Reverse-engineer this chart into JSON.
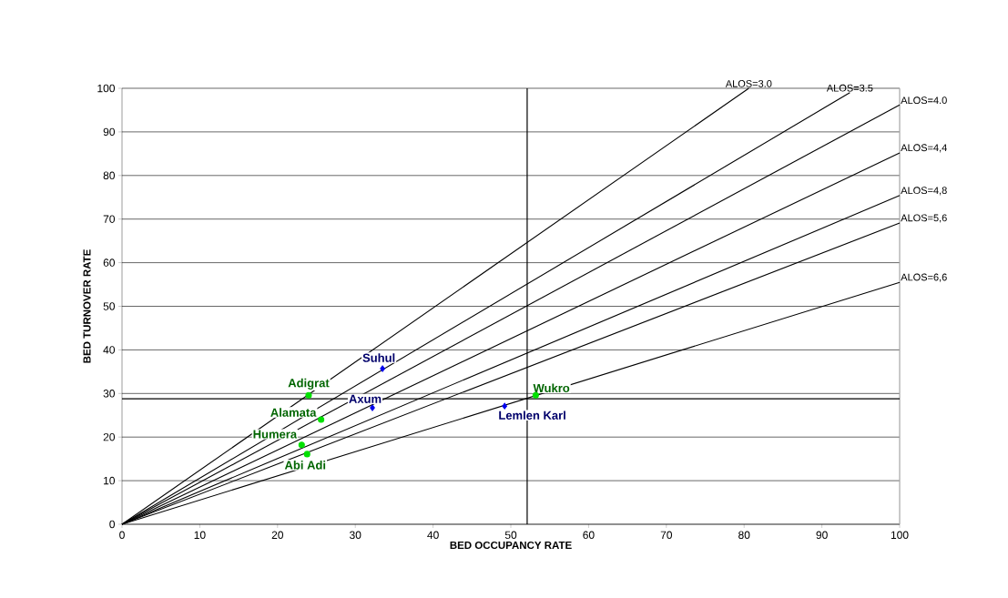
{
  "chart_data": {
    "type": "scatter",
    "xlabel": "BED OCCUPANCY RATE",
    "ylabel": "BED TURNOVER RATE",
    "xlim": [
      0,
      100
    ],
    "ylim": [
      0,
      100
    ],
    "xticks": [
      0,
      10,
      20,
      30,
      40,
      50,
      60,
      70,
      80,
      90,
      100
    ],
    "yticks": [
      0,
      10,
      20,
      30,
      40,
      50,
      60,
      70,
      80,
      90,
      100
    ],
    "grid": "y",
    "ref_lines": [
      {
        "axis": "x",
        "value": 52.1,
        "color": "#000000"
      },
      {
        "axis": "y",
        "value": 28.8,
        "color": "#000000"
      }
    ],
    "series": [
      {
        "type": "line",
        "name": "ALOS=3.0",
        "color": "#000000",
        "marker": "none",
        "x": [
          0,
          80.6
        ],
        "values": [
          0,
          100
        ]
      },
      {
        "type": "line",
        "name": "ALOS=3.5",
        "color": "#000000",
        "marker": "none",
        "x": [
          0,
          93.6
        ],
        "values": [
          0,
          99
        ]
      },
      {
        "type": "line",
        "name": "ALOS=4.0",
        "color": "#000000",
        "marker": "none",
        "x": [
          0,
          100
        ],
        "values": [
          0,
          96.2
        ]
      },
      {
        "type": "line",
        "name": "ALOS=4,4",
        "color": "#000000",
        "marker": "none",
        "x": [
          0,
          100
        ],
        "values": [
          0,
          85.2
        ]
      },
      {
        "type": "line",
        "name": "ALOS=4,8",
        "color": "#000000",
        "marker": "none",
        "x": [
          0,
          100
        ],
        "values": [
          0,
          75.4
        ]
      },
      {
        "type": "line",
        "name": "ALOS=5,6",
        "color": "#000000",
        "marker": "none",
        "x": [
          0,
          100
        ],
        "values": [
          0,
          69.1
        ]
      },
      {
        "type": "line",
        "name": "ALOS=6,6",
        "color": "#000000",
        "marker": "none",
        "x": [
          0,
          100
        ],
        "values": [
          0,
          55.5
        ]
      },
      {
        "name": "Suhul",
        "color": "#0000ee",
        "marker": "diamond",
        "x": [
          33.5
        ],
        "values": [
          35.7
        ]
      },
      {
        "name": "Axum",
        "color": "#0000ee",
        "marker": "diamond",
        "x": [
          32.2
        ],
        "values": [
          26.7
        ]
      },
      {
        "name": "Lemlen Karl",
        "color": "#0000ee",
        "marker": "diamond",
        "x": [
          49.2
        ],
        "values": [
          27.1
        ]
      },
      {
        "name": "Adigrat",
        "color": "#00e000",
        "marker": "circle",
        "x": [
          24.0
        ],
        "values": [
          29.6
        ]
      },
      {
        "name": "Alamata",
        "color": "#00e000",
        "marker": "circle",
        "x": [
          25.6
        ],
        "values": [
          24.0
        ]
      },
      {
        "name": "Humera",
        "color": "#00e000",
        "marker": "circle",
        "x": [
          23.1
        ],
        "values": [
          18.2
        ]
      },
      {
        "name": "Abi Adi",
        "color": "#00e000",
        "marker": "circle",
        "x": [
          23.8
        ],
        "values": [
          16.1
        ]
      },
      {
        "name": "Wukro",
        "color": "#00e000",
        "marker": "circle",
        "x": [
          53.2
        ],
        "values": [
          29.6
        ]
      }
    ]
  }
}
